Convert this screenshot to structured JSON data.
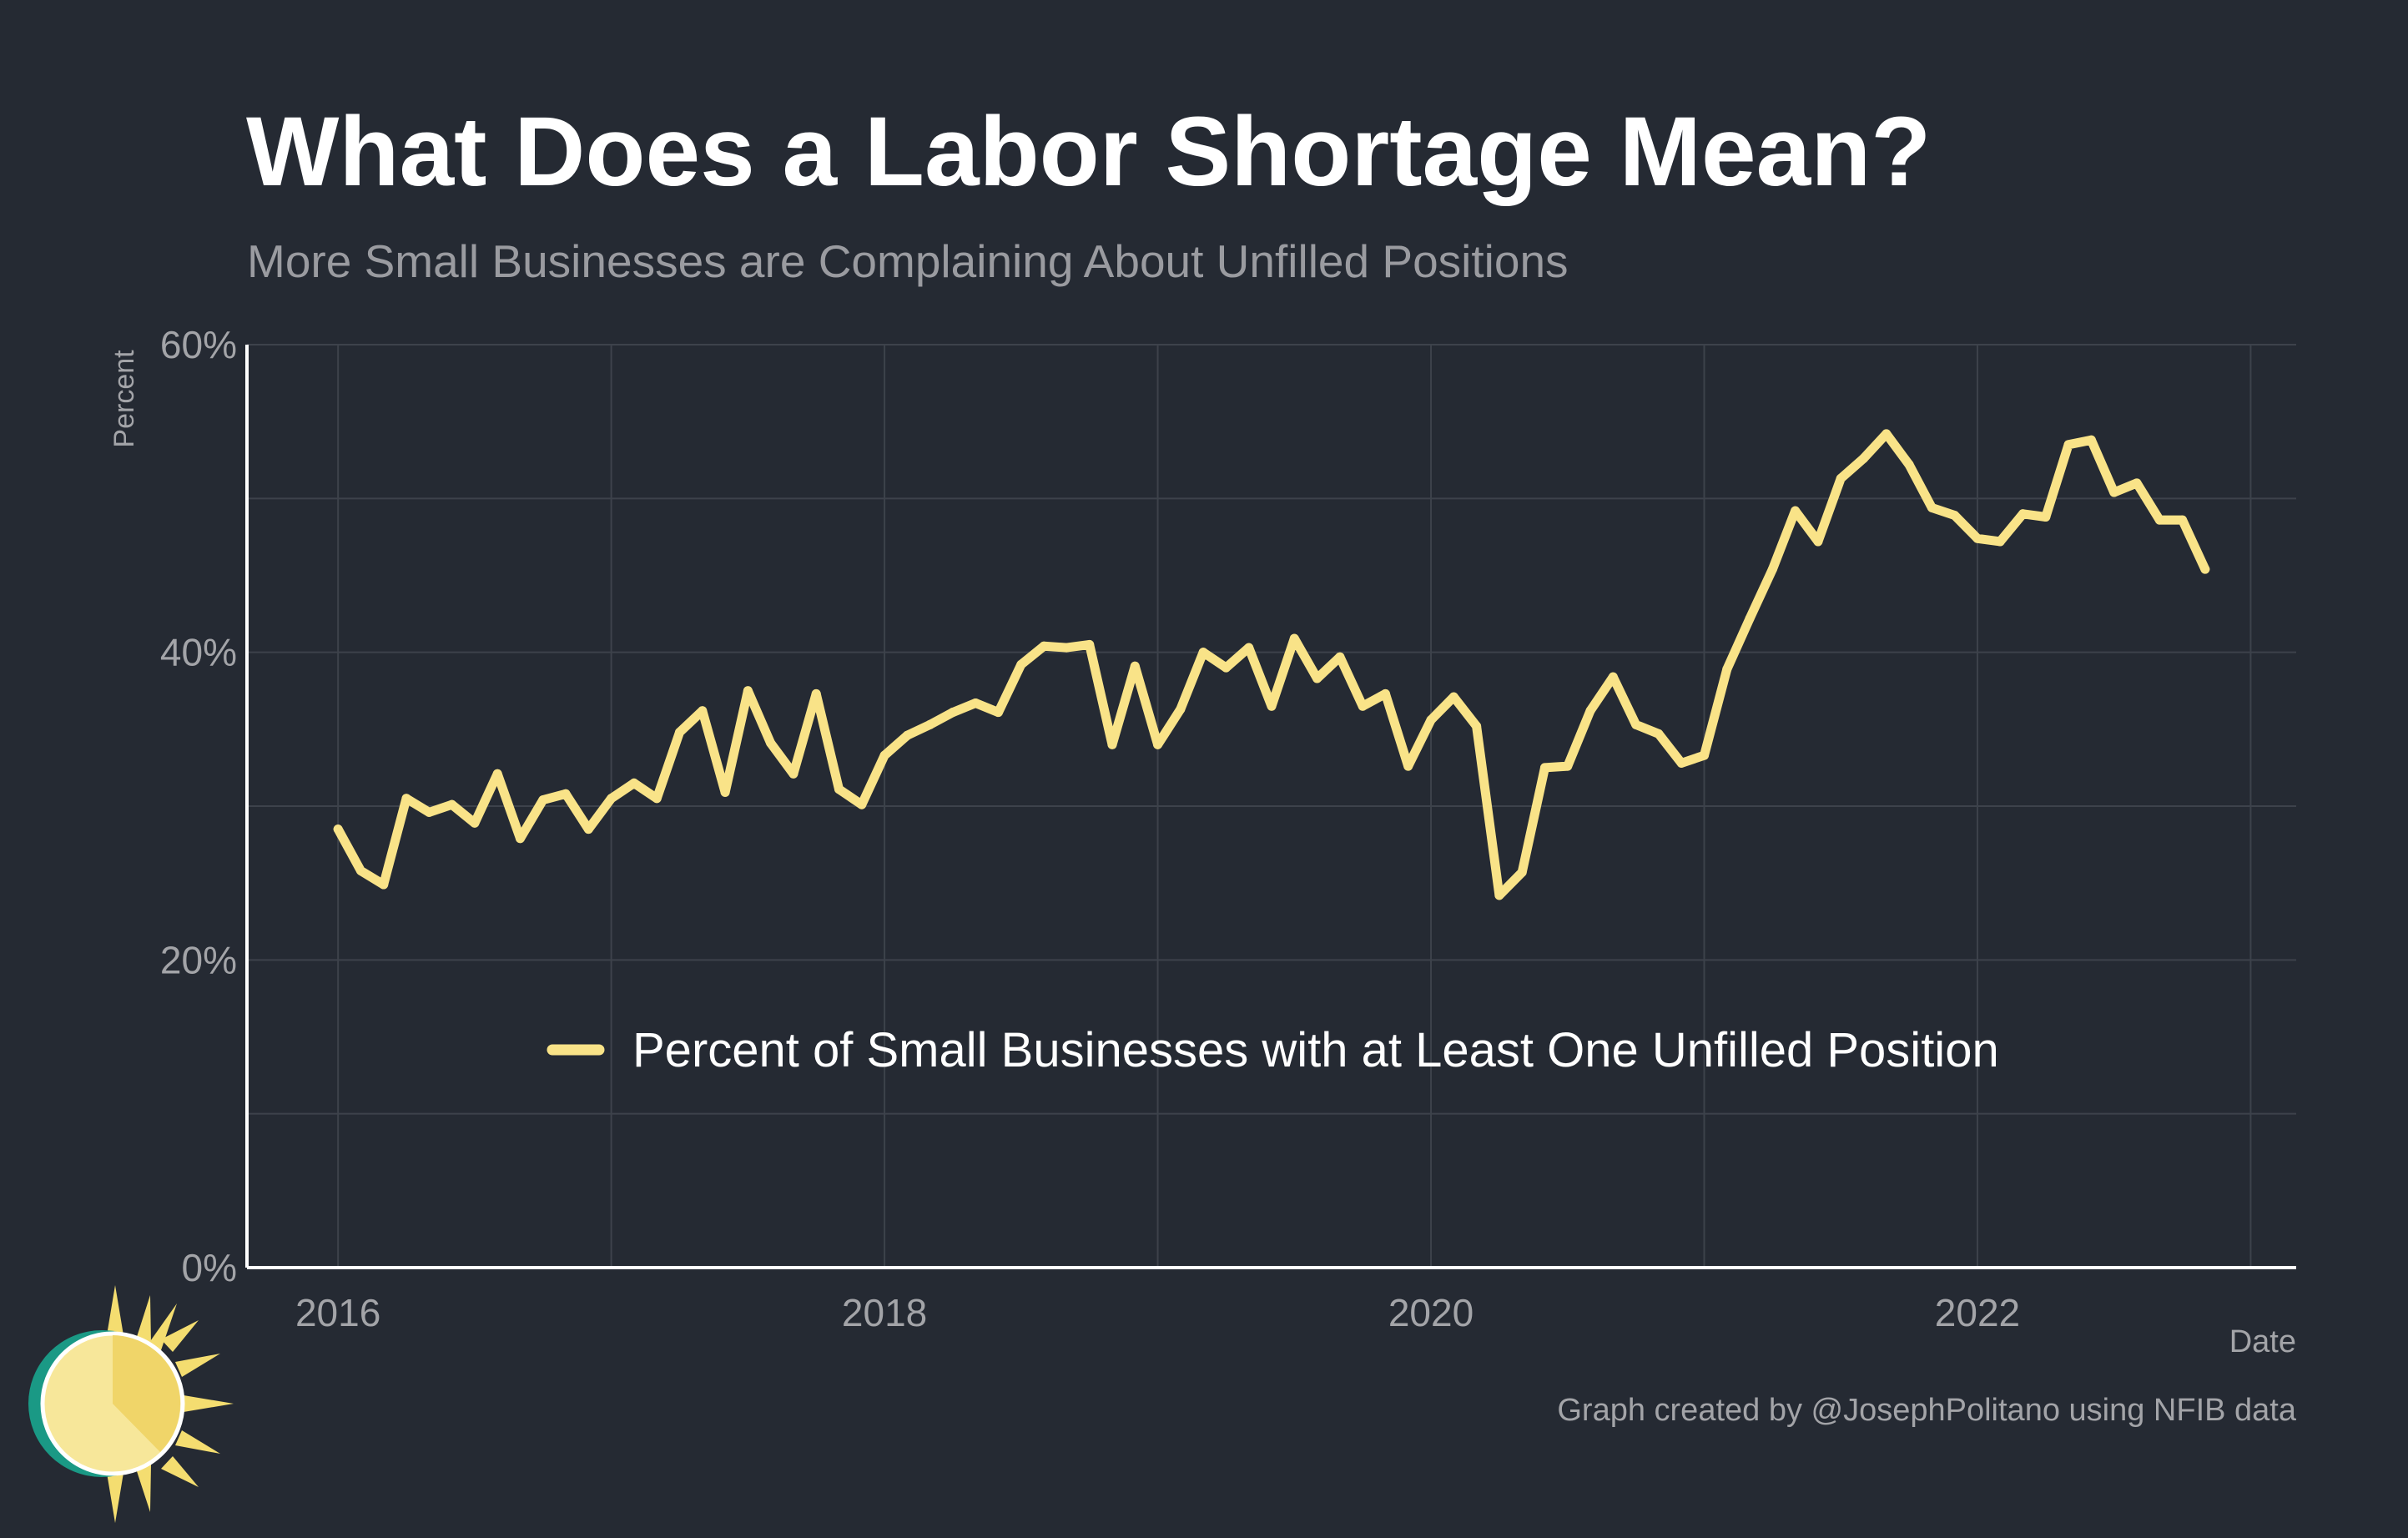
{
  "title": "What Does a Labor Shortage Mean?",
  "subtitle": "More Small Businesses are Complaining About Unfilled Positions",
  "caption": "Graph created by @JosephPolitano using NFIB data",
  "colors": {
    "background": "#252a33",
    "line": "#f9e388",
    "grid": "#3d424b",
    "axis": "#ffffff",
    "logo_ring": "#1a9985",
    "logo_sun": "#f4dd70"
  },
  "logo": {
    "icon": "sun-logo-icon"
  },
  "chart_data": {
    "type": "line",
    "title": "What Does a Labor Shortage Mean?",
    "subtitle": "More Small Businesses are Complaining About Unfilled Positions",
    "xlabel": "Date",
    "ylabel": "Percent",
    "xlim": [
      "2015-09",
      "2023-03"
    ],
    "ylim": [
      0,
      60
    ],
    "x_ticks": [
      "2016",
      "2018",
      "2020",
      "2022"
    ],
    "y_ticks": [
      "0%",
      "20%",
      "40%",
      "60%"
    ],
    "grid": true,
    "legend_position": "bottom-center",
    "series": [
      {
        "name": "Percent of Small Businesses with at Least One Unfilled Position",
        "start": "2016-01",
        "frequency": "monthly",
        "values": [
          28.5,
          25.8,
          24.9,
          30.5,
          29.6,
          30.1,
          28.9,
          32.1,
          27.9,
          30.4,
          30.8,
          28.5,
          30.5,
          31.5,
          30.5,
          34.8,
          36.2,
          30.9,
          37.5,
          34.1,
          32.1,
          37.3,
          31.1,
          30.1,
          33.3,
          34.6,
          35.3,
          36.1,
          36.7,
          36.1,
          39.2,
          40.4,
          40.3,
          40.5,
          34.0,
          39.1,
          34.0,
          36.3,
          40.0,
          39.0,
          40.3,
          36.5,
          40.9,
          38.3,
          39.7,
          36.5,
          37.3,
          32.6,
          35.6,
          37.1,
          35.2,
          24.2,
          25.7,
          32.5,
          32.6,
          36.2,
          38.4,
          35.3,
          34.7,
          32.8,
          33.3,
          38.9,
          42.2,
          45.4,
          49.2,
          47.2,
          51.3,
          52.6,
          54.2,
          52.2,
          49.4,
          48.9,
          47.4,
          47.2,
          49.0,
          48.8,
          53.5,
          53.8,
          50.4,
          51.0,
          48.6,
          48.6,
          45.4
        ]
      }
    ]
  }
}
